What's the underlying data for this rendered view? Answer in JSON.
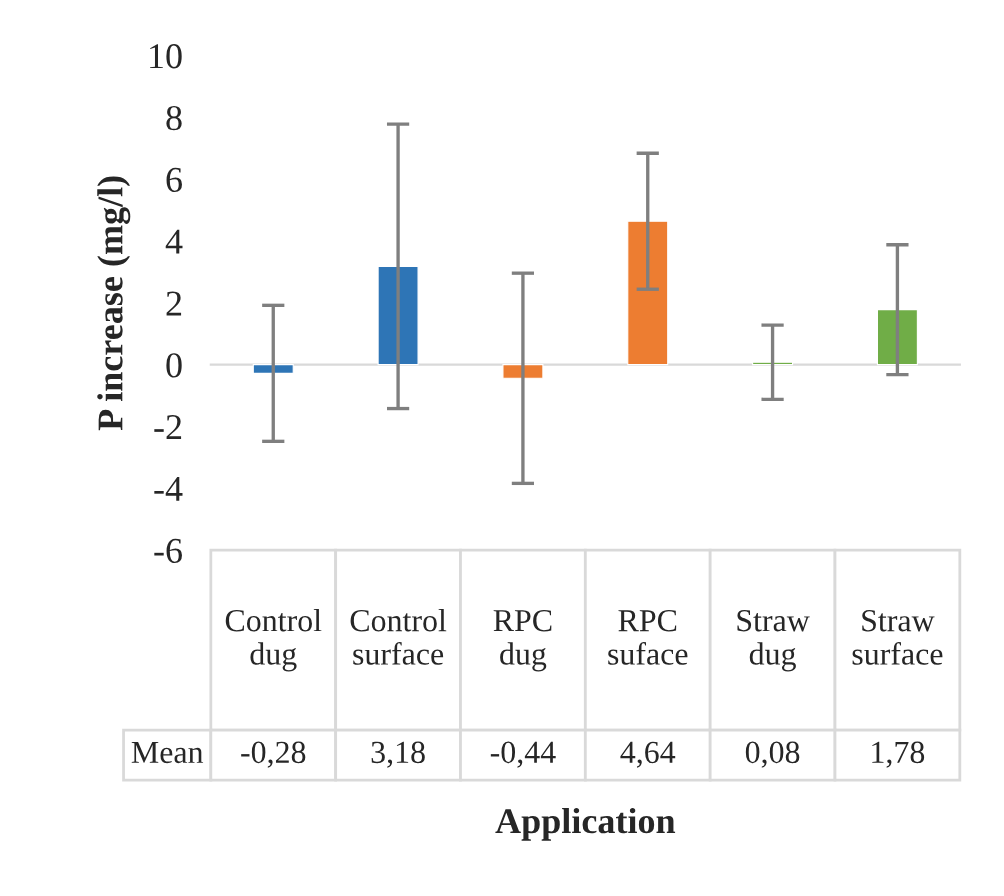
{
  "chart_data": {
    "type": "bar",
    "ylabel": "P increase (mg/l)",
    "xlabel": "Application",
    "categories": [
      "Control dug",
      "Control surface",
      "RPC dug",
      "RPC suface",
      "Straw dug",
      "Straw surface"
    ],
    "series": [
      {
        "name": "Mean",
        "colors": [
          "#2e75b6",
          "#2e75b6",
          "#ed7d31",
          "#ed7d31",
          "#70ad47",
          "#70ad47"
        ],
        "values": [
          -0.28,
          3.18,
          -0.44,
          4.64,
          0.08,
          1.78
        ],
        "errors": [
          2.2,
          4.6,
          3.4,
          2.2,
          1.2,
          2.1
        ],
        "value_labels": [
          "-0,28",
          "3,18",
          "-0,44",
          "4,64",
          "0,08",
          "1,78"
        ]
      }
    ],
    "ylim": [
      -6,
      10
    ],
    "yticks": [
      -6,
      -4,
      -2,
      0,
      2,
      4,
      6,
      8,
      10
    ],
    "legend": false
  }
}
